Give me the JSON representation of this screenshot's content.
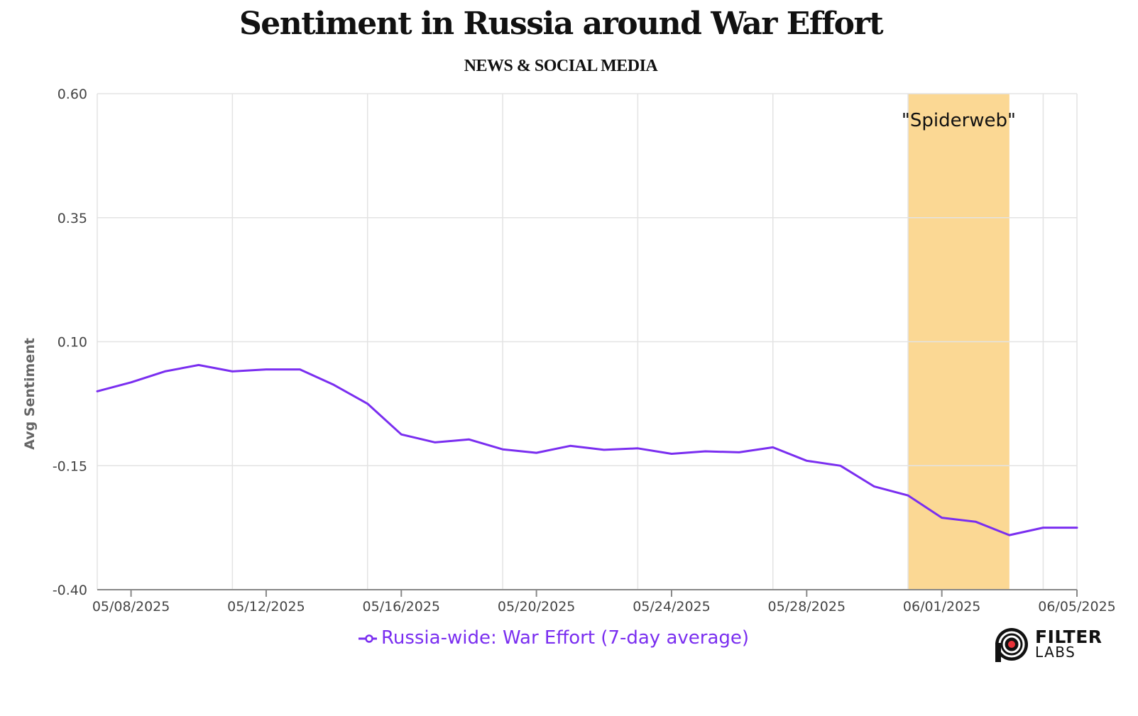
{
  "title": "Sentiment in Russia around War Effort",
  "subtitle": "NEWS & SOCIAL MEDIA",
  "colors": {
    "series": "#7a2ef0",
    "highlight": "#fbd894",
    "grid": "#e3e3e3",
    "axis": "#888888"
  },
  "logo": {
    "line1": "FILTER",
    "line2": "LABS",
    "icon": "filterlabs-target-icon"
  },
  "chart_data": {
    "type": "line",
    "ylabel": "Avg Sentiment",
    "ylim": [
      -0.4,
      0.6
    ],
    "yticks": [
      -0.4,
      -0.15,
      0.1,
      0.35,
      0.6
    ],
    "ytick_labels": [
      "-0.40",
      "-0.15",
      "0.10",
      "0.35",
      "0.60"
    ],
    "xlim": [
      "05/07/2025",
      "06/05/2025"
    ],
    "xticks": [
      "05/08/2025",
      "05/12/2025",
      "05/16/2025",
      "05/20/2025",
      "05/24/2025",
      "05/28/2025",
      "06/01/2025",
      "06/05/2025"
    ],
    "grid": true,
    "legend_position": "bottom",
    "series": [
      {
        "name": "Russia-wide: War Effort (7-day average)",
        "x": [
          "05/07/2025",
          "05/08/2025",
          "05/09/2025",
          "05/10/2025",
          "05/11/2025",
          "05/12/2025",
          "05/13/2025",
          "05/14/2025",
          "05/15/2025",
          "05/16/2025",
          "05/17/2025",
          "05/18/2025",
          "05/19/2025",
          "05/20/2025",
          "05/21/2025",
          "05/22/2025",
          "05/23/2025",
          "05/24/2025",
          "05/25/2025",
          "05/26/2025",
          "05/27/2025",
          "05/28/2025",
          "05/29/2025",
          "05/30/2025",
          "05/31/2025",
          "06/01/2025",
          "06/02/2025",
          "06/03/2025",
          "06/04/2025",
          "06/05/2025"
        ],
        "values": [
          0.0,
          0.018,
          0.04,
          0.053,
          0.04,
          0.044,
          0.044,
          0.013,
          -0.025,
          -0.087,
          -0.103,
          -0.097,
          -0.117,
          -0.124,
          -0.11,
          -0.118,
          -0.115,
          -0.126,
          -0.121,
          -0.123,
          -0.113,
          -0.14,
          -0.15,
          -0.192,
          -0.21,
          -0.255,
          -0.263,
          -0.29,
          -0.275,
          -0.275
        ]
      }
    ],
    "annotations": [
      {
        "label": "\"Spiderweb\"",
        "x_start": "05/31/2025",
        "x_end": "06/03/2025"
      }
    ]
  }
}
